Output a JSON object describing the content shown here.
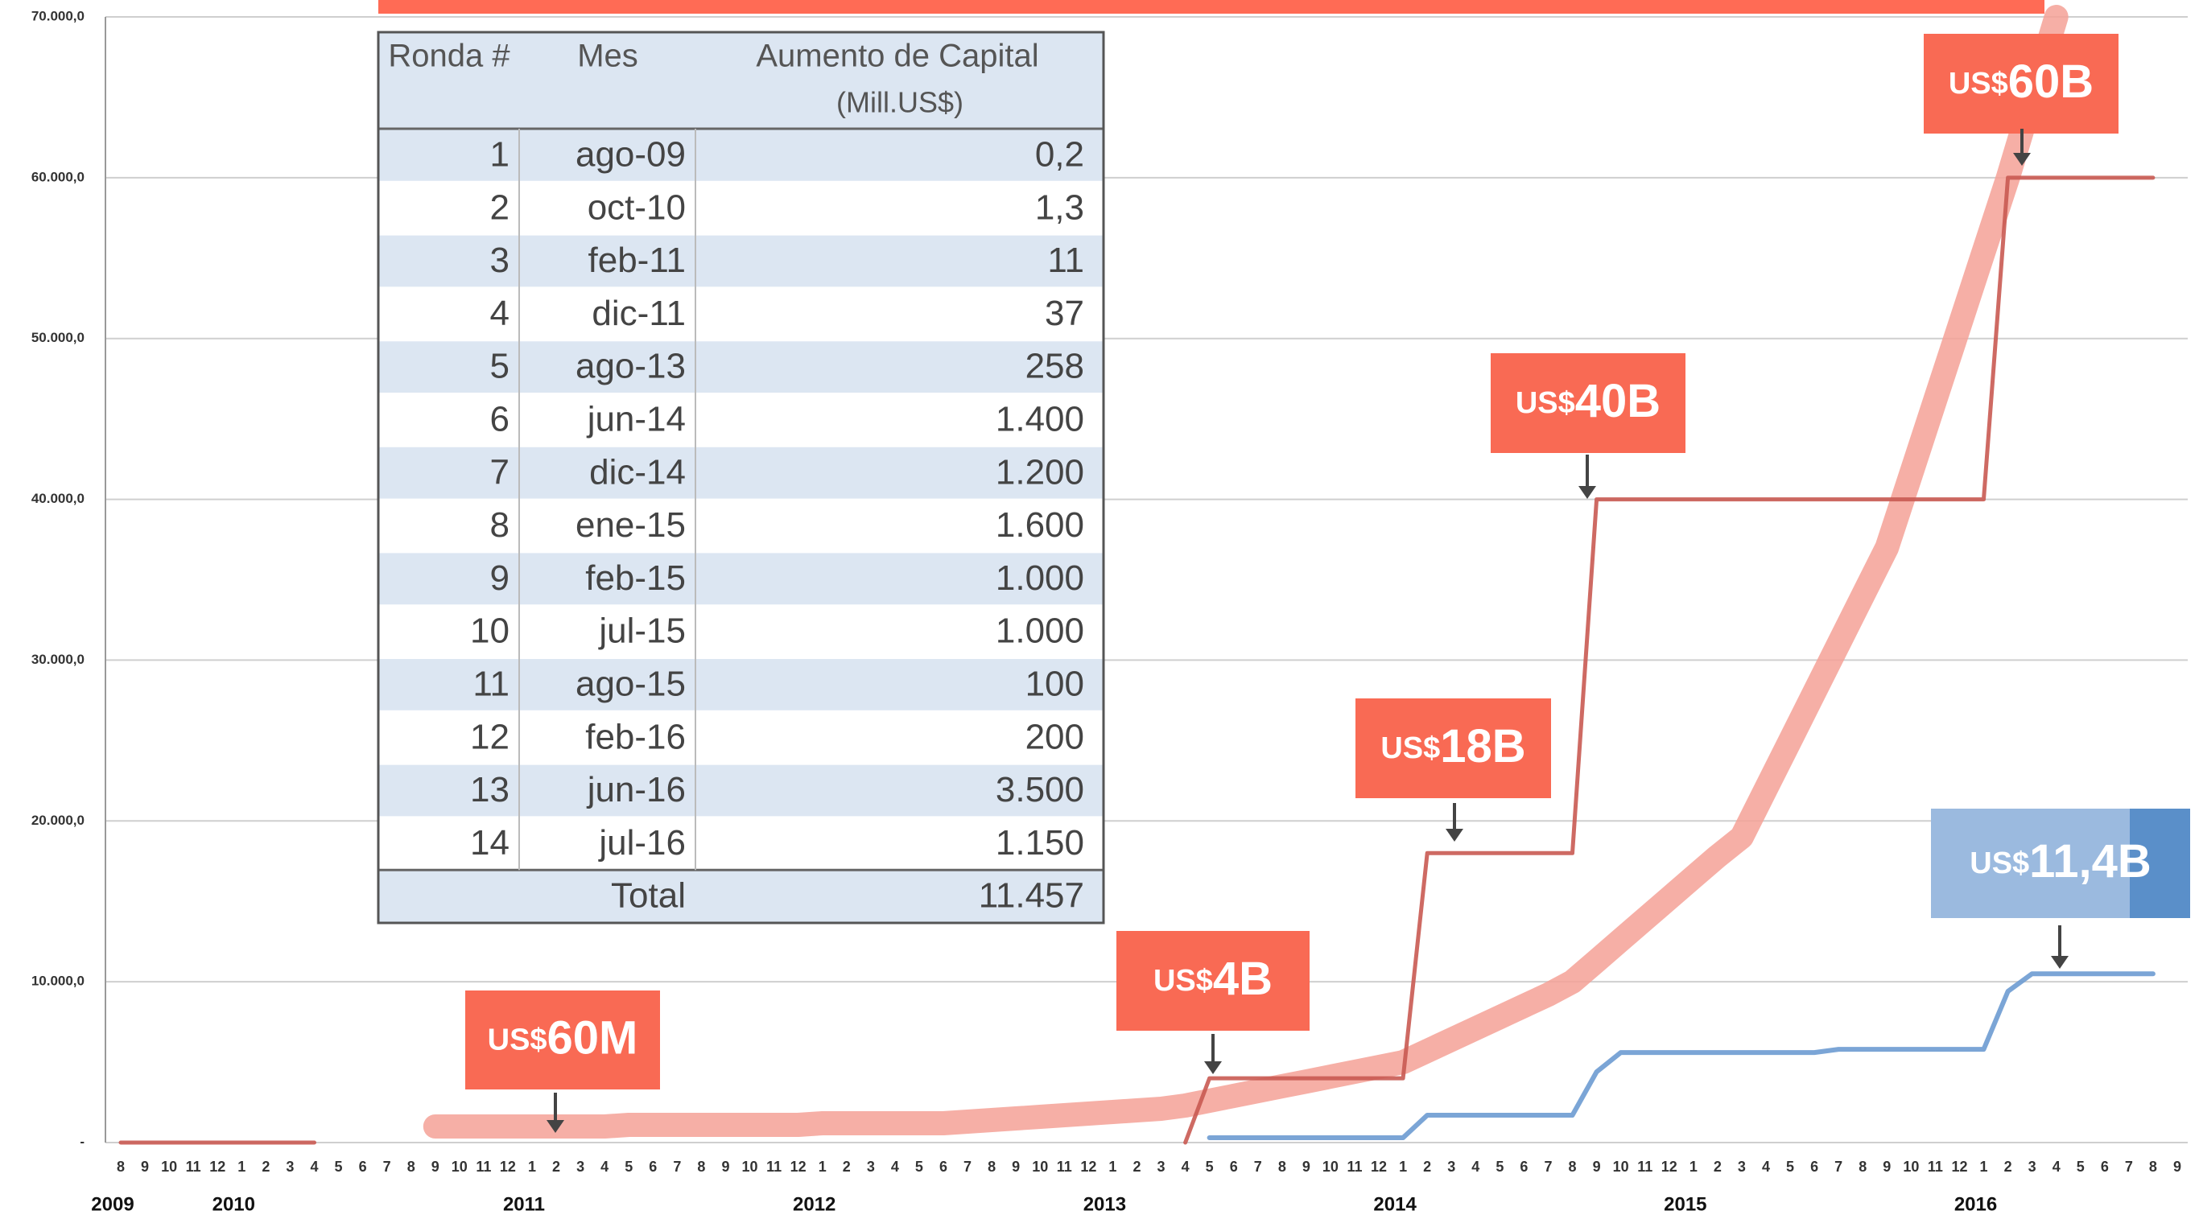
{
  "chart_data": {
    "type": "line",
    "categories": [
      "8",
      "9",
      "10",
      "11",
      "12",
      "1",
      "2",
      "3",
      "4",
      "5",
      "6",
      "7",
      "8",
      "9",
      "10",
      "11",
      "12",
      "1",
      "2",
      "3",
      "4",
      "5",
      "6",
      "7",
      "8",
      "9",
      "10",
      "11",
      "12",
      "1",
      "2",
      "3",
      "4",
      "5",
      "6",
      "7",
      "8",
      "9",
      "10",
      "11",
      "12",
      "1",
      "2",
      "3",
      "4",
      "5",
      "6",
      "7",
      "8",
      "9",
      "10",
      "11",
      "12",
      "1",
      "2",
      "3",
      "4",
      "5",
      "6",
      "7",
      "8",
      "9",
      "10",
      "11",
      "12",
      "1",
      "2",
      "3",
      "4",
      "5",
      "6",
      "7",
      "8",
      "9",
      "10",
      "11",
      "12",
      "1",
      "2",
      "3",
      "4",
      "5",
      "6",
      "7",
      "8",
      "9"
    ],
    "years": [
      "2009",
      "2010",
      "2011",
      "2012",
      "2013",
      "2014",
      "2015",
      "2016"
    ],
    "ylim": [
      0,
      70000
    ],
    "yticks": [
      {
        "value": 0,
        "label": "-"
      },
      {
        "value": 10000,
        "label": "10.000,0"
      },
      {
        "value": 20000,
        "label": "20.000,0"
      },
      {
        "value": 30000,
        "label": "30.000,0"
      },
      {
        "value": 40000,
        "label": "40.000,0"
      },
      {
        "value": 50000,
        "label": "50.000,0"
      },
      {
        "value": 60000,
        "label": "60.000,0"
      },
      {
        "value": 70000,
        "label": "70.000,0"
      }
    ],
    "grid": true,
    "series": [
      {
        "color": "#f5a196",
        "width": 30,
        "values": [
          null,
          null,
          null,
          null,
          null,
          null,
          null,
          null,
          null,
          null,
          null,
          null,
          null,
          1000,
          1000,
          1000,
          1000,
          1000,
          1000,
          1000,
          1000,
          1100,
          1100,
          1100,
          1100,
          1100,
          1100,
          1100,
          1100,
          1200,
          1200,
          1200,
          1200,
          1200,
          1200,
          1300,
          1400,
          1500,
          1600,
          1700,
          1800,
          1900,
          2000,
          2100,
          2300,
          2600,
          2900,
          3200,
          3500,
          3800,
          4100,
          4400,
          4700,
          5000,
          5700,
          6400,
          7100,
          7800,
          8500,
          9200,
          10000,
          11300,
          12600,
          13900,
          15200,
          16500,
          17800,
          19000,
          22000,
          25000,
          28000,
          31000,
          34000,
          37000,
          41600,
          46200,
          50800,
          55400,
          60000,
          65000,
          70000,
          null,
          null,
          null,
          null,
          null
        ]
      },
      {
        "color": "#c95a52",
        "width": 5,
        "values": [
          0,
          0,
          0,
          0,
          0,
          0,
          0,
          0,
          0,
          null,
          null,
          null,
          null,
          null,
          null,
          null,
          null,
          null,
          null,
          null,
          null,
          null,
          null,
          null,
          null,
          null,
          null,
          null,
          null,
          null,
          null,
          null,
          null,
          null,
          null,
          null,
          null,
          null,
          null,
          null,
          null,
          null,
          null,
          null,
          0,
          4000,
          4000,
          4000,
          4000,
          4000,
          4000,
          4000,
          4000,
          4000,
          18000,
          18000,
          18000,
          18000,
          18000,
          18000,
          18000,
          40000,
          40000,
          40000,
          40000,
          40000,
          40000,
          40000,
          40000,
          40000,
          40000,
          40000,
          40000,
          40000,
          40000,
          40000,
          40000,
          40000,
          60000,
          60000,
          60000,
          60000,
          60000,
          60000,
          60000,
          null
        ]
      },
      {
        "color": "#6d9bd2",
        "width": 6,
        "values": [
          null,
          null,
          null,
          null,
          null,
          null,
          null,
          null,
          null,
          null,
          null,
          null,
          null,
          null,
          null,
          null,
          null,
          null,
          null,
          null,
          null,
          null,
          null,
          null,
          null,
          null,
          null,
          null,
          null,
          null,
          null,
          null,
          null,
          null,
          null,
          null,
          null,
          null,
          null,
          null,
          null,
          null,
          null,
          null,
          null,
          300,
          300,
          300,
          300,
          300,
          300,
          300,
          300,
          300,
          1700,
          1700,
          1700,
          1700,
          1700,
          1700,
          1700,
          4400,
          5600,
          5600,
          5600,
          5600,
          5600,
          5600,
          5600,
          5600,
          5600,
          5800,
          5800,
          5800,
          5800,
          5800,
          5800,
          5800,
          9400,
          10500,
          10500,
          10500,
          10500,
          10500,
          10500,
          null
        ]
      }
    ],
    "callouts": [
      {
        "prefix": "US$",
        "amount": "60M",
        "color": "#f96a54"
      },
      {
        "prefix": "US$",
        "amount": "4B",
        "color": "#f96a54"
      },
      {
        "prefix": "US$",
        "amount": "18B",
        "color": "#f96a54"
      },
      {
        "prefix": "US$",
        "amount": "40B",
        "color": "#f96a54"
      },
      {
        "prefix": "US$",
        "amount": "60B",
        "color": "#f96a54"
      },
      {
        "prefix": "US$",
        "amount": "11,4B",
        "color": "#9bbadf"
      }
    ]
  },
  "table": {
    "header": [
      "Ronda #",
      "Mes",
      "Aumento de Capital"
    ],
    "unit": "(Mill.US$)",
    "rows": [
      [
        "1",
        "ago-09",
        "0,2"
      ],
      [
        "2",
        "oct-10",
        "1,3"
      ],
      [
        "3",
        "feb-11",
        "11"
      ],
      [
        "4",
        "dic-11",
        "37"
      ],
      [
        "5",
        "ago-13",
        "258"
      ],
      [
        "6",
        "jun-14",
        "1.400"
      ],
      [
        "7",
        "dic-14",
        "1.200"
      ],
      [
        "8",
        "ene-15",
        "1.600"
      ],
      [
        "9",
        "feb-15",
        "1.000"
      ],
      [
        "10",
        "jul-15",
        "1.000"
      ],
      [
        "11",
        "ago-15",
        "100"
      ],
      [
        "12",
        "feb-16",
        "200"
      ],
      [
        "13",
        "jun-16",
        "3.500"
      ],
      [
        "14",
        "jul-16",
        "1.150"
      ]
    ],
    "total": [
      "Total",
      "11.457"
    ]
  }
}
